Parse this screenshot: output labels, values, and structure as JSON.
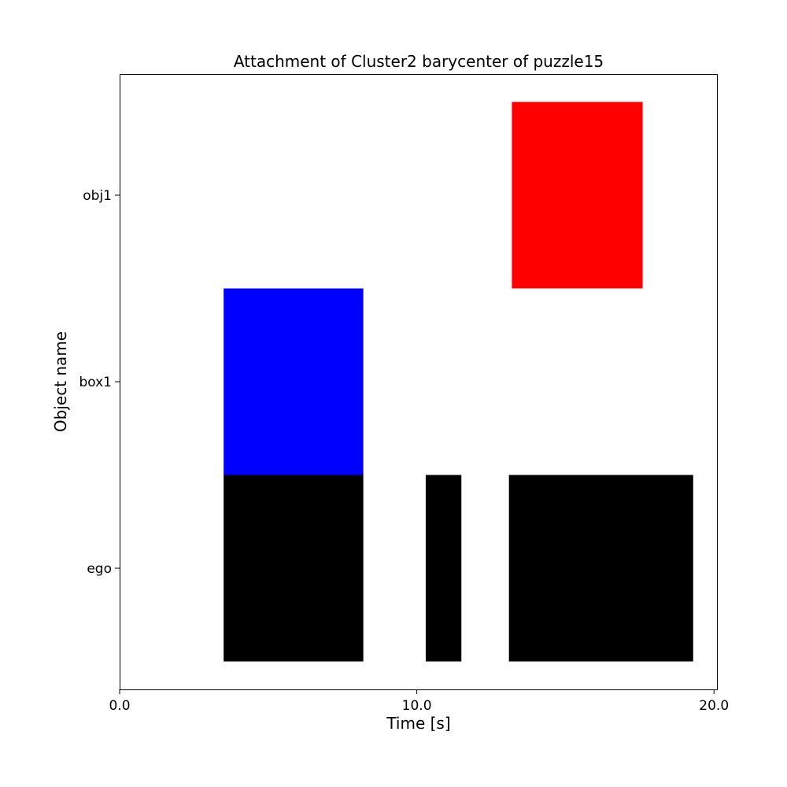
{
  "chart_data": {
    "type": "timeline",
    "title": "Attachment of Cluster2 barycenter of puzzle15",
    "xlabel": "Time [s]",
    "ylabel": "Object name",
    "xlim": [
      0.0,
      20.1
    ],
    "x_ticks": [
      0.0,
      10.0,
      20.0
    ],
    "x_tick_labels": [
      "0.0",
      "10.0",
      "20.0"
    ],
    "categories": [
      "ego",
      "box1",
      "obj1"
    ],
    "grid": false,
    "segments": [
      {
        "row": "ego",
        "start": 3.5,
        "end": 8.2,
        "color": "#000000"
      },
      {
        "row": "ego",
        "start": 10.3,
        "end": 11.5,
        "color": "#000000"
      },
      {
        "row": "ego",
        "start": 13.1,
        "end": 19.3,
        "color": "#000000"
      },
      {
        "row": "box1",
        "start": 3.5,
        "end": 8.2,
        "color": "#0000ff"
      },
      {
        "row": "obj1",
        "start": 13.2,
        "end": 17.6,
        "color": "#ff0000"
      }
    ]
  }
}
